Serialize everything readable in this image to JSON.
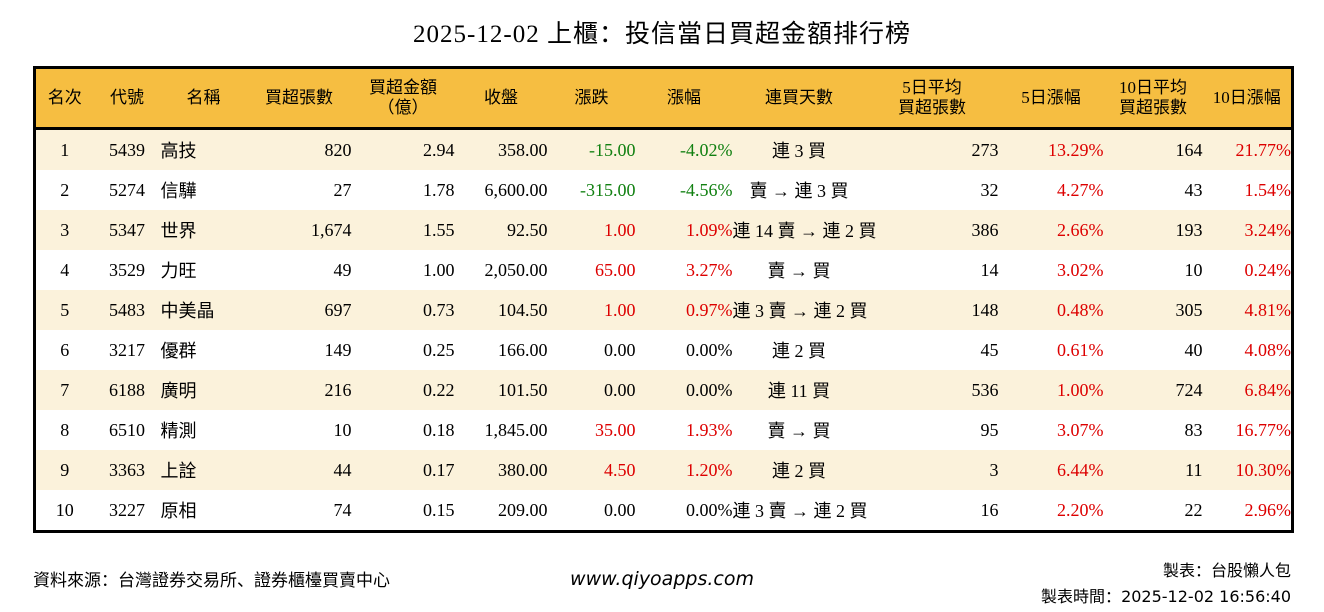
{
  "title": "2025-12-02 上櫃：投信當日買超金額排行榜",
  "table": {
    "columns": [
      {
        "key": "rank",
        "label": "名次",
        "align": "c",
        "paint": "none"
      },
      {
        "key": "code",
        "label": "代號",
        "align": "c",
        "paint": "none"
      },
      {
        "key": "name",
        "label": "名稱",
        "align": "l",
        "paint": "none"
      },
      {
        "key": "lots",
        "label": "買超張數",
        "align": "r",
        "paint": "none"
      },
      {
        "key": "amount",
        "label": "買超金額\n（億）",
        "align": "r",
        "paint": "none"
      },
      {
        "key": "close",
        "label": "收盤",
        "align": "r",
        "paint": "none"
      },
      {
        "key": "change",
        "label": "漲跌",
        "align": "r",
        "paint": "dir"
      },
      {
        "key": "change_pct",
        "label": "漲幅",
        "align": "r",
        "paint": "dir"
      },
      {
        "key": "streak",
        "label": "連買天數",
        "align": "c",
        "paint": "none"
      },
      {
        "key": "avg5",
        "label": "5日平均\n買超張數",
        "align": "r",
        "paint": "none"
      },
      {
        "key": "pct5",
        "label": "5日漲幅",
        "align": "r",
        "paint": "up"
      },
      {
        "key": "avg10",
        "label": "10日平均\n買超張數",
        "align": "r",
        "paint": "none"
      },
      {
        "key": "pct10",
        "label": "10日漲幅",
        "align": "r",
        "paint": "up"
      }
    ],
    "rows": [
      {
        "rank": "1",
        "code": "5439",
        "name": "高技",
        "lots": "820",
        "amount": "2.94",
        "close": "358.00",
        "change": "-15.00",
        "change_pct": "-4.02%",
        "dir": "down",
        "streak": "連 3 買",
        "avg5": "273",
        "pct5": "13.29%",
        "avg10": "164",
        "pct10": "21.77%"
      },
      {
        "rank": "2",
        "code": "5274",
        "name": "信驊",
        "lots": "27",
        "amount": "1.78",
        "close": "6,600.00",
        "change": "-315.00",
        "change_pct": "-4.56%",
        "dir": "down",
        "streak": "賣 → 連 3 買",
        "avg5": "32",
        "pct5": "4.27%",
        "avg10": "43",
        "pct10": "1.54%"
      },
      {
        "rank": "3",
        "code": "5347",
        "name": "世界",
        "lots": "1,674",
        "amount": "1.55",
        "close": "92.50",
        "change": "1.00",
        "change_pct": "1.09%",
        "dir": "up",
        "streak": "連 14 賣 → 連 2 買",
        "avg5": "386",
        "pct5": "2.66%",
        "avg10": "193",
        "pct10": "3.24%"
      },
      {
        "rank": "4",
        "code": "3529",
        "name": "力旺",
        "lots": "49",
        "amount": "1.00",
        "close": "2,050.00",
        "change": "65.00",
        "change_pct": "3.27%",
        "dir": "up",
        "streak": "賣 → 買",
        "avg5": "14",
        "pct5": "3.02%",
        "avg10": "10",
        "pct10": "0.24%"
      },
      {
        "rank": "5",
        "code": "5483",
        "name": "中美晶",
        "lots": "697",
        "amount": "0.73",
        "close": "104.50",
        "change": "1.00",
        "change_pct": "0.97%",
        "dir": "up",
        "streak": "連 3 賣 → 連 2 買",
        "avg5": "148",
        "pct5": "0.48%",
        "avg10": "305",
        "pct10": "4.81%"
      },
      {
        "rank": "6",
        "code": "3217",
        "name": "優群",
        "lots": "149",
        "amount": "0.25",
        "close": "166.00",
        "change": "0.00",
        "change_pct": "0.00%",
        "dir": "flat",
        "streak": "連 2 買",
        "avg5": "45",
        "pct5": "0.61%",
        "avg10": "40",
        "pct10": "4.08%"
      },
      {
        "rank": "7",
        "code": "6188",
        "name": "廣明",
        "lots": "216",
        "amount": "0.22",
        "close": "101.50",
        "change": "0.00",
        "change_pct": "0.00%",
        "dir": "flat",
        "streak": "連 11 買",
        "avg5": "536",
        "pct5": "1.00%",
        "avg10": "724",
        "pct10": "6.84%"
      },
      {
        "rank": "8",
        "code": "6510",
        "name": "精測",
        "lots": "10",
        "amount": "0.18",
        "close": "1,845.00",
        "change": "35.00",
        "change_pct": "1.93%",
        "dir": "up",
        "streak": "賣 → 買",
        "avg5": "95",
        "pct5": "3.07%",
        "avg10": "83",
        "pct10": "16.77%"
      },
      {
        "rank": "9",
        "code": "3363",
        "name": "上詮",
        "lots": "44",
        "amount": "0.17",
        "close": "380.00",
        "change": "4.50",
        "change_pct": "1.20%",
        "dir": "up",
        "streak": "連 2 買",
        "avg5": "3",
        "pct5": "6.44%",
        "avg10": "11",
        "pct10": "10.30%"
      },
      {
        "rank": "10",
        "code": "3227",
        "name": "原相",
        "lots": "74",
        "amount": "0.15",
        "close": "209.00",
        "change": "0.00",
        "change_pct": "0.00%",
        "dir": "flat",
        "streak": "連 3 賣 → 連 2 買",
        "avg5": "16",
        "pct5": "2.20%",
        "avg10": "22",
        "pct10": "2.96%"
      }
    ]
  },
  "footer": {
    "source": "資料來源：台灣證券交易所、證券櫃檯買賣中心",
    "website": "www.qiyoapps.com",
    "maker": "製表：台股懶人包",
    "time_label": "製表時間：",
    "time_value": "2025-12-02 16:56:40"
  },
  "colors": {
    "header_bg": "#F6BE41",
    "row_alt_bg": "#FBF2DB",
    "up": "#DD0000",
    "down": "#118011",
    "flat": "#000000",
    "border": "#000000"
  }
}
